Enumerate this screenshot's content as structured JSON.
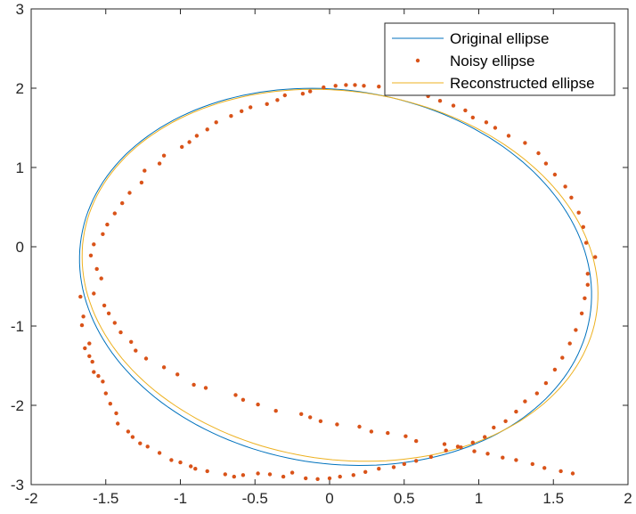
{
  "chart_data": {
    "type": "scatter",
    "title": "",
    "xlabel": "",
    "ylabel": "",
    "xlim": [
      -2,
      2
    ],
    "ylim": [
      -3,
      3
    ],
    "xticks": [
      -2,
      -1.5,
      -1,
      -0.5,
      0,
      0.5,
      1,
      1.5,
      2
    ],
    "yticks": [
      -3,
      -2,
      -1,
      0,
      1,
      2,
      3
    ],
    "xtick_labels": [
      "-2",
      "-1.5",
      "-1",
      "-0.5",
      "0",
      "0.5",
      "1",
      "1.5",
      "2"
    ],
    "ytick_labels": [
      "-3",
      "-2",
      "-1",
      "0",
      "1",
      "2",
      "3"
    ],
    "grid": false,
    "box": true,
    "legend_location": "top-right",
    "colors": {
      "original": "#0072BD",
      "noisy": "#D95319",
      "reconstructed": "#EDB120",
      "axis": "#262626"
    },
    "series": [
      {
        "name": "Original ellipse",
        "style": "line",
        "ellipse": {
          "center": [
            0.04,
            -0.38
          ],
          "semi_axes": [
            1.7,
            2.39
          ],
          "rotation_deg": 8
        },
        "samples": 180
      },
      {
        "name": "Noisy ellipse",
        "style": "markers",
        "x": [
          -1.65,
          -1.67,
          -1.66,
          -1.64,
          -1.61,
          -1.58,
          -1.61,
          -1.59,
          -1.55,
          -1.52,
          -1.5,
          -1.47,
          -1.43,
          -1.42,
          -1.35,
          -1.32,
          -1.27,
          -1.22,
          -1.14,
          -1.06,
          -1.0,
          -0.93,
          -0.9,
          -0.82,
          -0.7,
          -0.64,
          -0.58,
          -0.48,
          -0.4,
          -0.31,
          -0.25,
          -0.16,
          -0.08,
          0.0,
          0.07,
          0.16,
          0.24,
          0.33,
          0.43,
          0.5,
          0.58,
          0.68,
          0.78,
          0.86,
          0.96,
          1.04,
          1.1,
          1.18,
          1.25,
          1.31,
          1.39,
          1.45,
          1.51,
          1.56,
          1.61,
          1.65,
          1.69,
          1.71,
          1.73,
          1.73,
          1.78,
          1.72,
          1.7,
          1.67,
          1.62,
          1.58,
          1.51,
          1.45,
          1.4,
          1.31,
          1.2,
          1.11,
          1.05,
          0.96,
          0.91,
          0.83,
          0.74,
          0.66,
          0.59,
          0.48,
          0.41,
          0.33,
          0.23,
          0.17,
          0.11,
          0.04,
          -0.04,
          -0.13,
          -0.18,
          -0.3,
          -0.35,
          -0.42,
          -0.53,
          -0.59,
          -0.66,
          -0.76,
          -0.82,
          -0.89,
          -0.94,
          -0.99,
          -1.11,
          -1.14,
          -1.24,
          -1.26,
          -1.34,
          -1.39,
          -1.44,
          -1.49,
          -1.52,
          -1.58,
          -1.6,
          -1.56,
          -1.53,
          -1.58,
          -1.51,
          -1.48,
          -1.44,
          -1.4,
          -1.33,
          -1.3,
          -1.23,
          -1.11,
          -1.02,
          -0.91,
          -0.83,
          -0.63,
          -0.58,
          -0.48,
          -0.36,
          -0.19,
          -0.13,
          -0.06,
          0.05,
          0.2,
          0.28,
          0.39,
          0.51,
          0.58,
          0.77,
          0.88,
          0.97,
          1.06,
          1.16,
          1.25,
          1.36,
          1.44,
          1.55,
          1.63
        ],
        "y": [
          -0.88,
          -0.63,
          -0.99,
          -1.28,
          -1.38,
          -1.58,
          -1.22,
          -1.45,
          -1.63,
          -1.7,
          -1.85,
          -1.98,
          -2.1,
          -2.23,
          -2.33,
          -2.4,
          -2.48,
          -2.52,
          -2.6,
          -2.69,
          -2.72,
          -2.77,
          -2.8,
          -2.83,
          -2.87,
          -2.9,
          -2.88,
          -2.86,
          -2.87,
          -2.9,
          -2.85,
          -2.92,
          -2.93,
          -2.92,
          -2.9,
          -2.88,
          -2.84,
          -2.8,
          -2.78,
          -2.74,
          -2.7,
          -2.65,
          -2.57,
          -2.52,
          -2.47,
          -2.4,
          -2.28,
          -2.2,
          -2.08,
          -1.95,
          -1.85,
          -1.72,
          -1.55,
          -1.4,
          -1.22,
          -1.05,
          -0.84,
          -0.65,
          -0.48,
          -0.34,
          -0.13,
          0.05,
          0.25,
          0.43,
          0.62,
          0.76,
          0.91,
          1.05,
          1.18,
          1.31,
          1.4,
          1.5,
          1.57,
          1.63,
          1.72,
          1.78,
          1.84,
          1.9,
          1.95,
          1.98,
          2.0,
          2.02,
          2.03,
          2.04,
          2.04,
          2.03,
          2.01,
          1.96,
          1.93,
          1.91,
          1.85,
          1.8,
          1.76,
          1.71,
          1.65,
          1.57,
          1.48,
          1.4,
          1.32,
          1.26,
          1.15,
          1.05,
          0.96,
          0.81,
          0.68,
          0.55,
          0.42,
          0.28,
          0.16,
          0.03,
          -0.11,
          -0.28,
          -0.4,
          -0.59,
          -0.74,
          -0.84,
          -0.96,
          -1.08,
          -1.2,
          -1.31,
          -1.41,
          -1.52,
          -1.61,
          -1.74,
          -1.78,
          -1.87,
          -1.93,
          -1.99,
          -2.07,
          -2.11,
          -2.15,
          -2.2,
          -2.24,
          -2.27,
          -2.33,
          -2.35,
          -2.39,
          -2.45,
          -2.49,
          -2.53,
          -2.58,
          -2.61,
          -2.66,
          -2.69,
          -2.74,
          -2.79,
          -2.83,
          -2.86
        ]
      },
      {
        "name": "Reconstructed ellipse",
        "style": "line",
        "ellipse": {
          "center": [
            0.07,
            -0.36
          ],
          "semi_axes": [
            1.71,
            2.36
          ],
          "rotation_deg": 9
        },
        "samples": 180,
        "gap_near": [
          -0.45,
          -2.77
        ]
      }
    ]
  }
}
